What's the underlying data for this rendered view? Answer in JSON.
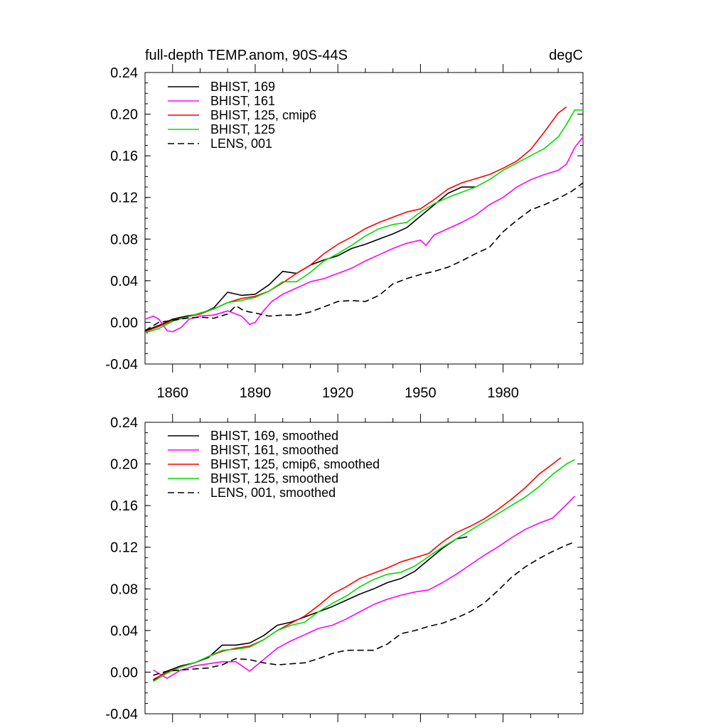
{
  "chart_data": [
    {
      "type": "line",
      "title": "full-depth TEMP.anom, 90S-44S",
      "units": "degC",
      "xlim": [
        1850,
        2009
      ],
      "ylim": [
        -0.04,
        0.24
      ],
      "yticks": [
        "-0.04",
        "0.00",
        "0.04",
        "0.08",
        "0.12",
        "0.16",
        "0.20",
        "0.24"
      ],
      "xticks": [
        "1860",
        "1890",
        "1920",
        "1950",
        "1980"
      ],
      "legend_position": "top-left",
      "series": [
        {
          "name": "BHIST, 169",
          "color": "#000000",
          "dash": "solid",
          "x": [
            1850,
            1855,
            1860,
            1865,
            1870,
            1875,
            1880,
            1885,
            1890,
            1895,
            1900,
            1905,
            1910,
            1915,
            1920,
            1925,
            1930,
            1935,
            1940,
            1945,
            1950,
            1955,
            1960,
            1965,
            1970
          ],
          "y": [
            -0.008,
            -0.003,
            0.003,
            0.006,
            0.008,
            0.014,
            0.029,
            0.026,
            0.027,
            0.036,
            0.049,
            0.047,
            0.055,
            0.06,
            0.064,
            0.071,
            0.075,
            0.08,
            0.085,
            0.091,
            0.102,
            0.113,
            0.124,
            0.13,
            0.13
          ]
        },
        {
          "name": "BHIST, 161",
          "color": "#ff00ff",
          "dash": "solid",
          "x": [
            1850,
            1853,
            1855,
            1858,
            1860,
            1863,
            1866,
            1870,
            1875,
            1880,
            1885,
            1888,
            1890,
            1893,
            1896,
            1900,
            1905,
            1910,
            1915,
            1920,
            1925,
            1930,
            1935,
            1940,
            1945,
            1950,
            1952,
            1955,
            1960,
            1965,
            1970,
            1975,
            1980,
            1985,
            1990,
            1995,
            2000,
            2003,
            2006,
            2009
          ],
          "y": [
            0.003,
            0.006,
            0.003,
            -0.008,
            -0.009,
            -0.005,
            0.003,
            0.006,
            0.007,
            0.011,
            0.006,
            -0.002,
            0.0,
            0.011,
            0.02,
            0.027,
            0.033,
            0.039,
            0.042,
            0.047,
            0.052,
            0.059,
            0.065,
            0.071,
            0.076,
            0.079,
            0.074,
            0.084,
            0.09,
            0.096,
            0.103,
            0.113,
            0.12,
            0.13,
            0.137,
            0.142,
            0.146,
            0.152,
            0.168,
            0.178
          ]
        },
        {
          "name": "BHIST, 125, cmip6",
          "color": "#ff0000",
          "dash": "solid",
          "x": [
            1850,
            1855,
            1860,
            1865,
            1870,
            1875,
            1880,
            1885,
            1890,
            1895,
            1900,
            1905,
            1910,
            1915,
            1920,
            1925,
            1930,
            1935,
            1940,
            1945,
            1950,
            1955,
            1960,
            1965,
            1970,
            1975,
            1980,
            1985,
            1990,
            1995,
            2000,
            2003
          ],
          "y": [
            -0.009,
            -0.004,
            0.002,
            0.005,
            0.008,
            0.013,
            0.019,
            0.023,
            0.025,
            0.03,
            0.038,
            0.047,
            0.055,
            0.066,
            0.075,
            0.082,
            0.09,
            0.096,
            0.101,
            0.106,
            0.109,
            0.118,
            0.128,
            0.134,
            0.138,
            0.142,
            0.148,
            0.155,
            0.166,
            0.183,
            0.201,
            0.207
          ]
        },
        {
          "name": "BHIST, 125",
          "color": "#00dd00",
          "dash": "solid",
          "x": [
            1850,
            1855,
            1860,
            1865,
            1870,
            1875,
            1880,
            1885,
            1890,
            1895,
            1900,
            1905,
            1910,
            1915,
            1920,
            1925,
            1930,
            1935,
            1940,
            1945,
            1950,
            1955,
            1960,
            1965,
            1970,
            1975,
            1980,
            1985,
            1990,
            1995,
            2000,
            2003,
            2006,
            2009
          ],
          "y": [
            -0.01,
            -0.006,
            0.001,
            0.005,
            0.009,
            0.013,
            0.019,
            0.021,
            0.024,
            0.03,
            0.039,
            0.039,
            0.048,
            0.059,
            0.066,
            0.074,
            0.083,
            0.09,
            0.094,
            0.096,
            0.106,
            0.114,
            0.12,
            0.125,
            0.13,
            0.137,
            0.146,
            0.153,
            0.16,
            0.167,
            0.178,
            0.19,
            0.204,
            0.204
          ]
        },
        {
          "name": "LENS, 001",
          "color": "#000000",
          "dash": "dashed",
          "x": [
            1850,
            1855,
            1860,
            1865,
            1870,
            1875,
            1880,
            1883,
            1886,
            1890,
            1895,
            1900,
            1905,
            1910,
            1915,
            1920,
            1925,
            1930,
            1935,
            1940,
            1945,
            1950,
            1955,
            1960,
            1965,
            1970,
            1975,
            1980,
            1985,
            1990,
            1995,
            2000,
            2005,
            2009
          ],
          "y": [
            -0.008,
            0.0,
            0.002,
            0.004,
            0.005,
            0.004,
            0.008,
            0.016,
            0.011,
            0.009,
            0.006,
            0.007,
            0.007,
            0.01,
            0.015,
            0.02,
            0.021,
            0.02,
            0.026,
            0.037,
            0.042,
            0.046,
            0.049,
            0.053,
            0.059,
            0.066,
            0.072,
            0.087,
            0.098,
            0.108,
            0.113,
            0.119,
            0.126,
            0.134
          ]
        }
      ]
    },
    {
      "type": "line",
      "title": "",
      "xlim": [
        1850,
        2009
      ],
      "ylim": [
        -0.04,
        0.24
      ],
      "yticks": [
        "-0.04",
        "0.00",
        "0.04",
        "0.08",
        "0.12",
        "0.16",
        "0.20",
        "0.24"
      ],
      "legend_position": "top-left",
      "series": [
        {
          "name": "BHIST, 169, smoothed",
          "color": "#000000",
          "dash": "solid",
          "x": [
            1853,
            1858,
            1863,
            1868,
            1873,
            1878,
            1883,
            1888,
            1893,
            1898,
            1903,
            1908,
            1913,
            1918,
            1923,
            1928,
            1933,
            1938,
            1943,
            1948,
            1953,
            1958,
            1963,
            1967
          ],
          "y": [
            -0.008,
            0.001,
            0.006,
            0.009,
            0.014,
            0.026,
            0.026,
            0.028,
            0.035,
            0.045,
            0.048,
            0.053,
            0.058,
            0.063,
            0.069,
            0.075,
            0.08,
            0.086,
            0.09,
            0.097,
            0.108,
            0.119,
            0.128,
            0.13
          ]
        },
        {
          "name": "BHIST, 161, smoothed",
          "color": "#ff00ff",
          "dash": "solid",
          "x": [
            1853,
            1858,
            1863,
            1868,
            1873,
            1878,
            1883,
            1888,
            1893,
            1898,
            1903,
            1908,
            1913,
            1918,
            1923,
            1928,
            1933,
            1938,
            1943,
            1948,
            1953,
            1958,
            1963,
            1968,
            1973,
            1978,
            1983,
            1988,
            1993,
            1998,
            2003,
            2006
          ],
          "y": [
            0.002,
            -0.006,
            0.002,
            0.006,
            0.008,
            0.01,
            0.01,
            0.001,
            0.012,
            0.023,
            0.03,
            0.036,
            0.042,
            0.045,
            0.051,
            0.058,
            0.065,
            0.07,
            0.074,
            0.077,
            0.079,
            0.086,
            0.094,
            0.103,
            0.112,
            0.12,
            0.129,
            0.137,
            0.143,
            0.148,
            0.161,
            0.169
          ]
        },
        {
          "name": "BHIST, 125, cmip6, smoothed",
          "color": "#ff0000",
          "dash": "solid",
          "x": [
            1853,
            1858,
            1863,
            1868,
            1873,
            1878,
            1883,
            1888,
            1893,
            1898,
            1903,
            1908,
            1913,
            1918,
            1923,
            1928,
            1933,
            1938,
            1943,
            1948,
            1953,
            1958,
            1963,
            1968,
            1973,
            1978,
            1983,
            1988,
            1993,
            1998,
            2001
          ],
          "y": [
            -0.007,
            0.0,
            0.005,
            0.009,
            0.015,
            0.02,
            0.023,
            0.025,
            0.031,
            0.04,
            0.047,
            0.054,
            0.064,
            0.075,
            0.082,
            0.09,
            0.095,
            0.1,
            0.106,
            0.11,
            0.114,
            0.125,
            0.134,
            0.14,
            0.147,
            0.156,
            0.166,
            0.177,
            0.19,
            0.2,
            0.206
          ]
        },
        {
          "name": "BHIST, 125, smoothed",
          "color": "#00dd00",
          "dash": "solid",
          "x": [
            1853,
            1858,
            1863,
            1868,
            1873,
            1878,
            1883,
            1888,
            1893,
            1898,
            1903,
            1908,
            1913,
            1918,
            1923,
            1928,
            1933,
            1938,
            1943,
            1948,
            1953,
            1958,
            1963,
            1968,
            1973,
            1978,
            1983,
            1988,
            1993,
            1998,
            2003,
            2006
          ],
          "y": [
            -0.009,
            -0.001,
            0.005,
            0.009,
            0.015,
            0.021,
            0.022,
            0.024,
            0.031,
            0.04,
            0.045,
            0.048,
            0.058,
            0.066,
            0.073,
            0.082,
            0.089,
            0.094,
            0.096,
            0.102,
            0.111,
            0.12,
            0.128,
            0.136,
            0.144,
            0.152,
            0.16,
            0.168,
            0.178,
            0.19,
            0.2,
            0.204
          ]
        },
        {
          "name": "LENS, 001, smoothed",
          "color": "#000000",
          "dash": "dashed",
          "x": [
            1853,
            1858,
            1863,
            1868,
            1873,
            1878,
            1883,
            1888,
            1893,
            1898,
            1903,
            1908,
            1913,
            1918,
            1923,
            1928,
            1933,
            1938,
            1943,
            1948,
            1953,
            1958,
            1963,
            1968,
            1973,
            1978,
            1983,
            1988,
            1993,
            1998,
            2003,
            2006
          ],
          "y": [
            -0.003,
            0.001,
            0.002,
            0.003,
            0.004,
            0.007,
            0.013,
            0.012,
            0.009,
            0.007,
            0.008,
            0.009,
            0.013,
            0.018,
            0.021,
            0.021,
            0.021,
            0.027,
            0.037,
            0.04,
            0.044,
            0.047,
            0.052,
            0.058,
            0.066,
            0.078,
            0.091,
            0.101,
            0.109,
            0.116,
            0.122,
            0.125
          ]
        }
      ]
    }
  ]
}
